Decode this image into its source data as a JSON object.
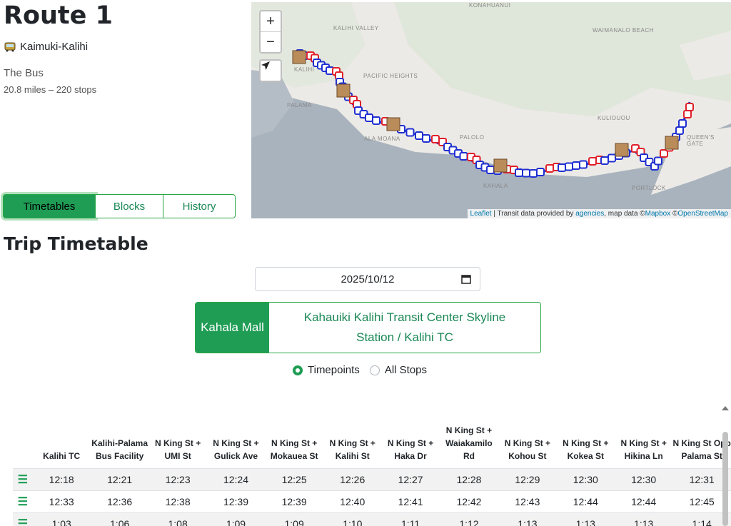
{
  "route": {
    "title": "Route 1",
    "name": "Kaimuki-Kalihi",
    "agency": "The Bus",
    "stats": "20.8 miles – 220 stops"
  },
  "tabs": [
    "Timetables",
    "Blocks",
    "History"
  ],
  "map": {
    "zoom_in": "+",
    "zoom_out": "−",
    "labels": [
      "KONAHUANUI",
      "KALIHI VALLEY",
      "WAIMANALO BEACH",
      "PACIFIC HEIGHTS",
      "ALA MOANA",
      "PALOLO",
      "KAHALA",
      "KULIOUOU",
      "QUEEN'S GATE",
      "PORTLOCK",
      "KALIHI",
      "PALAMA"
    ],
    "attribution": {
      "leaflet": "Leaflet",
      "sep1": " | Transit data provided by ",
      "agencies": "agencies",
      "sep2": ", map data ©",
      "mapbox": "Mapbox",
      "sep3": " ©",
      "osm": "OpenStreetMap"
    }
  },
  "timetable": {
    "title": "Trip Timetable",
    "date": "2025/10/12",
    "direction_active": "Kahala Mall",
    "direction_other": "Kahauiki Kalihi Transit Center Skyline Station / Kalihi TC",
    "radio_timepoints": "Timepoints",
    "radio_all": "All Stops",
    "columns": [
      "Kalihi TC",
      "Kalihi-Palama Bus Facility",
      "N King St + UMI St",
      "N King St + Gulick Ave",
      "N King St + Mokauea St",
      "N King St + Kalihi St",
      "N King St + Haka Dr",
      "N King St + Waiakamilo Rd",
      "N King St + Kohou St",
      "N King St + Kokea St",
      "N King St + Hikina Ln",
      "N King St Opp Palama St"
    ],
    "rows": [
      [
        "12:18",
        "12:21",
        "12:23",
        "12:24",
        "12:25",
        "12:26",
        "12:27",
        "12:28",
        "12:29",
        "12:30",
        "12:30",
        "12:31"
      ],
      [
        "12:33",
        "12:36",
        "12:38",
        "12:39",
        "12:39",
        "12:40",
        "12:41",
        "12:42",
        "12:43",
        "12:44",
        "12:44",
        "12:45"
      ],
      [
        "1:03",
        "1:06",
        "1:08",
        "1:09",
        "1:09",
        "1:10",
        "1:11",
        "1:12",
        "1:13",
        "1:13",
        "1:13",
        "1:14"
      ]
    ]
  },
  "colors": {
    "accent": "#1f9d55",
    "route_blue": "#1f2fd0",
    "route_red": "#e0202a"
  }
}
